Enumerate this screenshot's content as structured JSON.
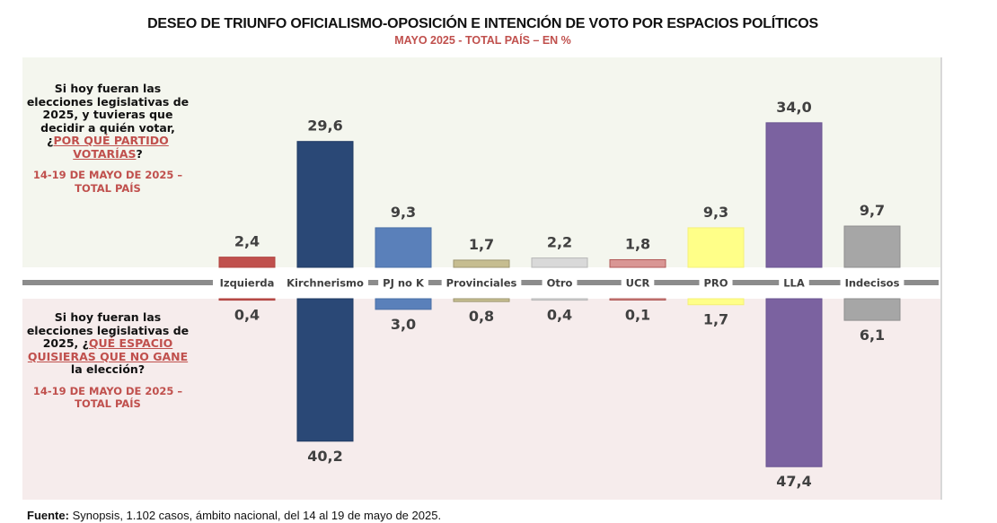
{
  "header": {
    "title": "DESEO DE TRIUNFO OFICIALISMO-OPOSICIÓN E INTENCIÓN DE VOTO POR ESPACIOS POLÍTICOS",
    "subtitle": "MAYO 2025 - TOTAL PAÍS – EN %"
  },
  "questions": {
    "top": {
      "text_before": "Si hoy fueran las elecciones legislativas de 2025, y tuvieras que decidir a quién votar, ¿",
      "highlight": "POR QUÉ PARTIDO VOTARÍAS",
      "text_after": "?",
      "date": "14-19 DE MAYO DE 2025 – TOTAL PAÍS"
    },
    "bottom": {
      "text_before": "Si hoy fueran las elecciones legislativas de 2025, ¿",
      "highlight": "QUÉ ESPACIO QUISIERAS QUE NO GANE",
      "text_after": " la elección?",
      "date": "14-19 DE MAYO DE 2025 – TOTAL PAÍS"
    }
  },
  "chart_data": {
    "type": "bar",
    "title": "DESEO DE TRIUNFO OFICIALISMO-OPOSICIÓN E INTENCIÓN DE VOTO POR ESPACIOS POLÍTICOS",
    "subtitle": "MAYO 2025 - TOTAL PAÍS – EN %",
    "categories": [
      "Izquierda",
      "Kirchnerismo",
      "PJ no K",
      "Provinciales",
      "Otro",
      "UCR",
      "PRO",
      "LLA",
      "Indecisos"
    ],
    "series": [
      {
        "name": "Intención de voto",
        "direction": "up",
        "values": [
          2.4,
          29.6,
          9.3,
          1.7,
          2.2,
          1.8,
          9.3,
          34.0,
          9.7
        ],
        "labels": [
          "2,4",
          "29,6",
          "9,3",
          "1,7",
          "2,2",
          "1,8",
          "9,3",
          "34,0",
          "9,7"
        ]
      },
      {
        "name": "No quisiera que gane",
        "direction": "down",
        "values": [
          0.4,
          40.2,
          3.0,
          0.8,
          0.4,
          0.1,
          1.7,
          47.4,
          6.1
        ],
        "labels": [
          "0,4",
          "40,2",
          "3,0",
          "0,8",
          "0,4",
          "0,1",
          "1,7",
          "47,4",
          "6,1"
        ]
      }
    ],
    "colors": [
      "#c0504d",
      "#2a4876",
      "#5a80ba",
      "#c6bd90",
      "#d9d9d9",
      "#d99694",
      "#ffff88",
      "#7b62a0",
      "#a6a6a6"
    ],
    "borders": [
      "#b04440",
      "#1f3a63",
      "#4a6fa6",
      "#9e9670",
      "#b8b8b8",
      "#b05a58",
      "#f4f07a",
      "#6a5490",
      "#8f8f8f"
    ],
    "ylabel": "%",
    "grid": false
  },
  "footer": {
    "label": "Fuente:",
    "text": " Synopsis, 1.102 casos, ámbito nacional, del 14 al 19 de mayo de 2025."
  }
}
